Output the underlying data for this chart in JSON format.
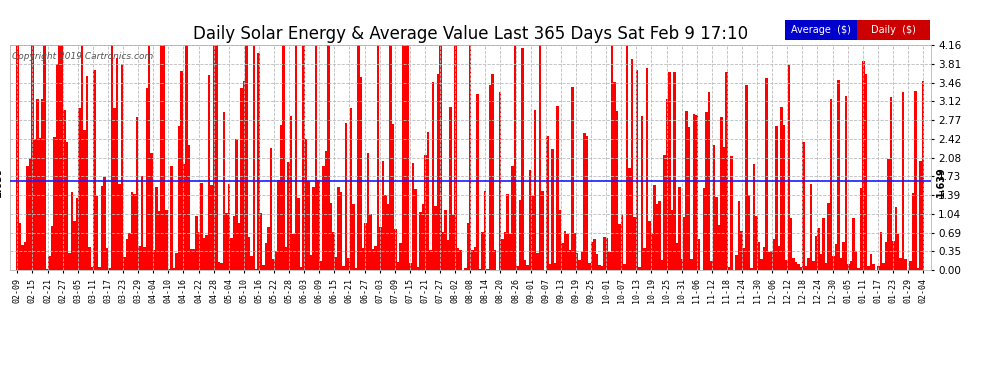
{
  "title": "Daily Solar Energy & Average Value Last 365 Days Sat Feb 9 17:10",
  "copyright": "Copyright 2019 Cartronics.com",
  "average_value": 1.639,
  "average_label": "1.639",
  "y_ticks": [
    0.0,
    0.35,
    0.69,
    1.04,
    1.39,
    1.73,
    2.08,
    2.42,
    2.77,
    3.12,
    3.46,
    3.81,
    4.16
  ],
  "y_max": 4.16,
  "y_min": 0.0,
  "bar_color": "#ff0000",
  "avg_line_color": "#1a1aff",
  "background_color": "#ffffff",
  "grid_color": "#bbbbbb",
  "title_fontsize": 12,
  "legend_avg_color": "#0000cc",
  "legend_daily_color": "#cc0000",
  "x_labels": [
    "02-09",
    "02-15",
    "02-21",
    "02-27",
    "03-05",
    "03-11",
    "03-17",
    "03-23",
    "03-29",
    "04-04",
    "04-10",
    "04-16",
    "04-22",
    "04-28",
    "05-04",
    "05-10",
    "05-16",
    "05-22",
    "05-28",
    "06-03",
    "06-09",
    "06-15",
    "06-21",
    "06-27",
    "07-03",
    "07-09",
    "07-15",
    "07-21",
    "07-27",
    "08-02",
    "08-08",
    "08-14",
    "08-20",
    "08-26",
    "09-01",
    "09-07",
    "09-13",
    "09-19",
    "09-25",
    "10-01",
    "10-07",
    "10-13",
    "10-19",
    "10-25",
    "10-31",
    "11-06",
    "11-12",
    "11-18",
    "11-24",
    "11-30",
    "12-06",
    "12-12",
    "12-18",
    "12-24",
    "12-30",
    "01-05",
    "01-11",
    "01-17",
    "01-23",
    "01-29",
    "02-04"
  ],
  "n_bars": 365,
  "seed": 12345
}
